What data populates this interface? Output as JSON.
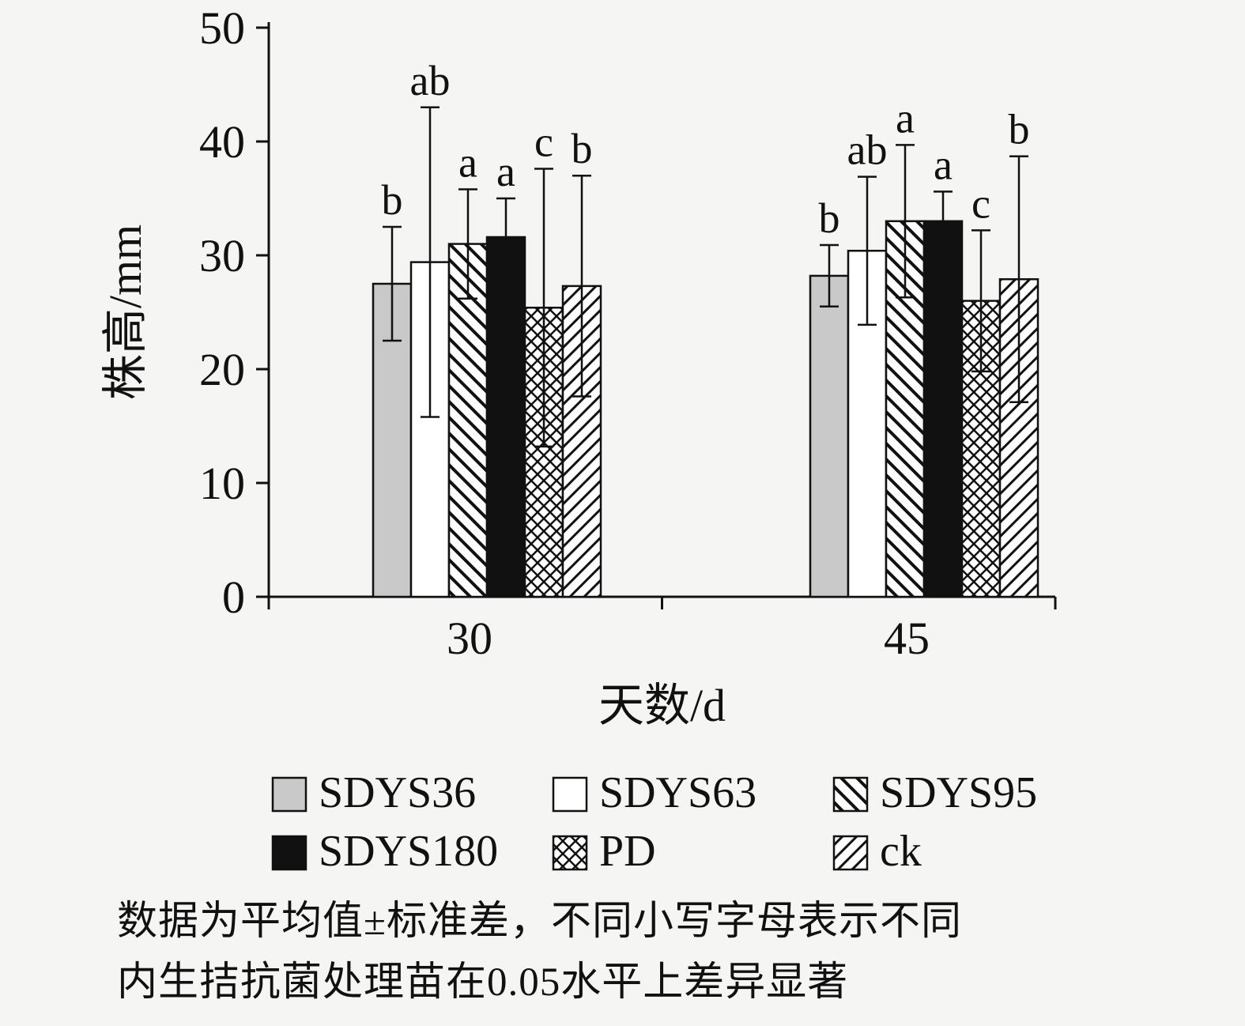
{
  "chart": {
    "caption_line1": "数据为平均值±标准差，不同小写字母表示不同",
    "caption_line2": "内生拮抗菌处理苗在0.05水平上差异显著"
  },
  "chart_data": {
    "type": "bar",
    "title": "",
    "xlabel": "天数/d",
    "ylabel": "株高/mm",
    "ylim": [
      0,
      50
    ],
    "yticks": [
      0,
      10,
      20,
      30,
      40,
      50
    ],
    "categories": [
      "30",
      "45"
    ],
    "grid": false,
    "legend_position": "bottom",
    "series": [
      {
        "name": "SDYS36",
        "fill": "#c9c9c9",
        "values": [
          27.5,
          28.2
        ],
        "errors": [
          5.0,
          2.7
        ],
        "letters": [
          "b",
          "b"
        ]
      },
      {
        "name": "SDYS63",
        "fill": "#ffffff",
        "values": [
          29.4,
          30.4
        ],
        "errors": [
          13.6,
          6.5
        ],
        "letters": [
          "ab",
          "ab"
        ]
      },
      {
        "name": "SDYS95",
        "fill": "pattern:p-diag",
        "values": [
          31.0,
          33.0
        ],
        "errors": [
          4.8,
          6.7
        ],
        "letters": [
          "a",
          "a"
        ]
      },
      {
        "name": "SDYS180",
        "fill": "#111111",
        "values": [
          31.6,
          33.0
        ],
        "errors": [
          3.4,
          2.6
        ],
        "letters": [
          "a",
          "a"
        ]
      },
      {
        "name": "PD",
        "fill": "pattern:p-cross",
        "values": [
          25.4,
          26.0
        ],
        "errors": [
          12.2,
          6.2
        ],
        "letters": [
          "c",
          "c"
        ]
      },
      {
        "name": "ck",
        "fill": "pattern:p-diag2",
        "values": [
          27.3,
          27.9
        ],
        "errors": [
          9.7,
          10.8
        ],
        "letters": [
          "b",
          "b"
        ]
      }
    ],
    "colors": {
      "ink": "#111111",
      "gray_fill": "#c9c9c9",
      "black_fill": "#111111",
      "white_fill": "#ffffff"
    }
  }
}
